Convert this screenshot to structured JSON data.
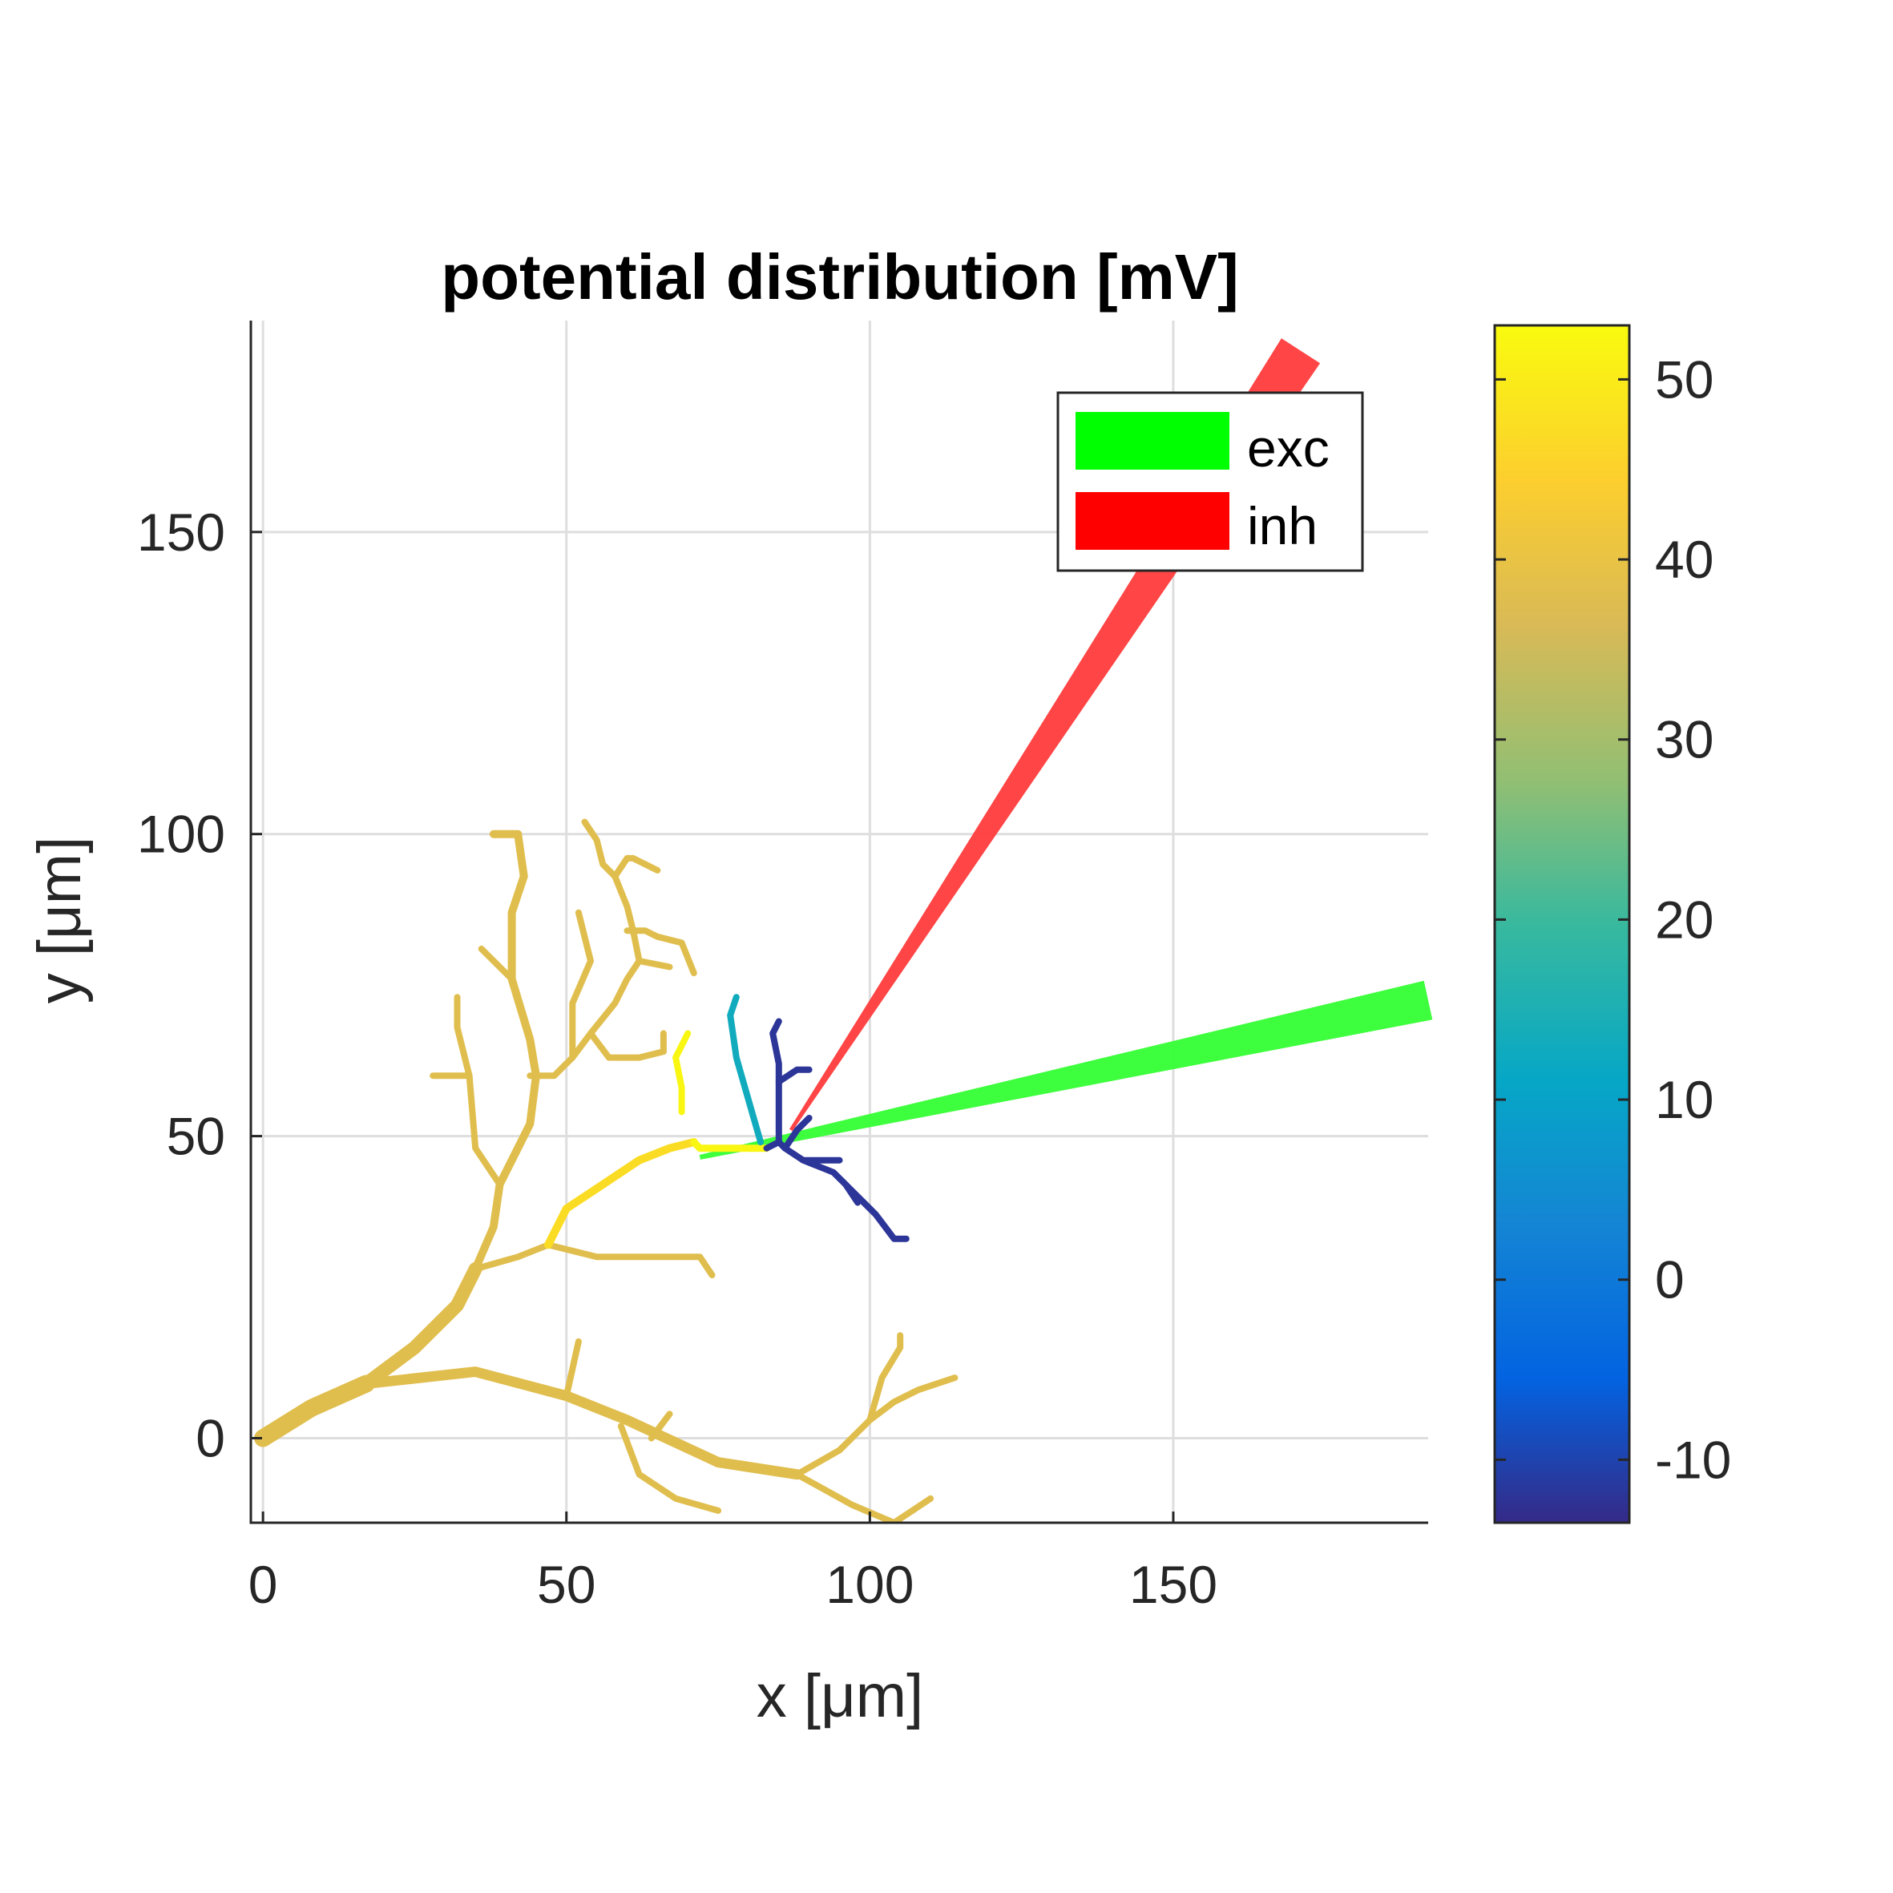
{
  "chart_data": {
    "type": "line",
    "title": "potential distribution [mV]",
    "xlabel": "x [μm]",
    "ylabel": "y [μm]",
    "xlim": [
      -2,
      192
    ],
    "ylim": [
      -14,
      185
    ],
    "xticks": [
      0,
      50,
      100,
      150
    ],
    "yticks": [
      0,
      50,
      100,
      150
    ],
    "xtick_labels": [
      "0",
      "50",
      "100",
      "150"
    ],
    "ytick_labels": [
      "0",
      "50",
      "100",
      "150"
    ],
    "grid": true,
    "legend": {
      "position": "top-right",
      "entries": [
        {
          "label": "exc",
          "color": "#00ff00"
        },
        {
          "label": "inh",
          "color": "#ff0000"
        }
      ]
    },
    "colorbar": {
      "colormap": "parula",
      "range": [
        -13.5,
        53
      ],
      "ticks": [
        -10,
        0,
        10,
        20,
        30,
        40,
        50
      ],
      "tick_labels": [
        "-10",
        "0",
        "10",
        "20",
        "30",
        "40",
        "50"
      ]
    },
    "electrodes": [
      {
        "name": "exc",
        "color": "#33ff33",
        "tip": [
          72,
          46.5
        ],
        "end": [
          192,
          72.5
        ],
        "tip_half_width": 0.4,
        "end_half_width": 3.3
      },
      {
        "name": "inh",
        "color": "#ff3b3b",
        "tip": [
          87,
          51
        ],
        "end": [
          171,
          180
        ],
        "tip_half_width": 0.3,
        "end_half_width": 3.8
      }
    ],
    "neuron_segments": [
      {
        "points": [
          [
            0,
            0
          ],
          [
            8,
            5
          ],
          [
            17,
            9
          ]
        ],
        "width": 22,
        "value": 38
      },
      {
        "points": [
          [
            17,
            9
          ],
          [
            25,
            15
          ],
          [
            32,
            22
          ],
          [
            35,
            28
          ]
        ],
        "width": 17,
        "value": 38
      },
      {
        "points": [
          [
            17,
            9
          ],
          [
            35,
            11
          ],
          [
            50,
            7
          ],
          [
            60,
            3
          ],
          [
            75,
            -4
          ],
          [
            88,
            -6
          ]
        ],
        "width": 13,
        "value": 38
      },
      {
        "points": [
          [
            88,
            -6
          ],
          [
            97,
            -11
          ],
          [
            104,
            -14
          ],
          [
            110,
            -10
          ]
        ],
        "width": 8,
        "value": 38
      },
      {
        "points": [
          [
            88,
            -6
          ],
          [
            95,
            -2
          ],
          [
            100,
            3
          ],
          [
            104,
            6
          ],
          [
            108,
            8
          ],
          [
            114,
            10
          ]
        ],
        "width": 8,
        "value": 38
      },
      {
        "points": [
          [
            100,
            3
          ],
          [
            102,
            10
          ],
          [
            105,
            15
          ],
          [
            105,
            17
          ]
        ],
        "width": 8,
        "value": 38
      },
      {
        "points": [
          [
            59,
            2
          ],
          [
            62,
            -6
          ],
          [
            68,
            -10
          ],
          [
            75,
            -12
          ]
        ],
        "width": 8,
        "value": 38
      },
      {
        "points": [
          [
            50,
            7
          ],
          [
            52,
            16
          ]
        ],
        "width": 8,
        "value": 38
      },
      {
        "points": [
          [
            64,
            0
          ],
          [
            67,
            4
          ]
        ],
        "width": 8,
        "value": 38
      },
      {
        "points": [
          [
            35,
            28
          ],
          [
            38,
            35
          ],
          [
            39,
            42
          ],
          [
            44,
            52
          ],
          [
            45,
            60
          ],
          [
            44,
            66
          ],
          [
            41,
            76
          ],
          [
            41,
            87
          ],
          [
            43,
            93
          ],
          [
            42,
            100
          ],
          [
            38,
            100
          ]
        ],
        "width": 10,
        "value": 38
      },
      {
        "points": [
          [
            41,
            76
          ],
          [
            36,
            81
          ]
        ],
        "width": 8,
        "value": 38
      },
      {
        "points": [
          [
            39,
            42
          ],
          [
            35,
            48
          ],
          [
            34,
            60
          ],
          [
            32,
            68
          ],
          [
            32,
            73
          ]
        ],
        "width": 8,
        "value": 38
      },
      {
        "points": [
          [
            34,
            60
          ],
          [
            28,
            60
          ]
        ],
        "width": 8,
        "value": 38
      },
      {
        "points": [
          [
            44,
            60
          ],
          [
            48,
            60
          ],
          [
            51,
            63
          ],
          [
            54,
            67
          ],
          [
            58,
            72
          ],
          [
            60,
            76
          ],
          [
            62,
            79
          ],
          [
            61,
            84
          ],
          [
            60,
            88
          ],
          [
            58,
            93
          ],
          [
            60,
            96
          ],
          [
            61,
            96
          ],
          [
            65,
            94
          ]
        ],
        "width": 8,
        "value": 38
      },
      {
        "points": [
          [
            51,
            63
          ],
          [
            51,
            72
          ],
          [
            54,
            79
          ],
          [
            52,
            87
          ]
        ],
        "width": 8,
        "value": 38
      },
      {
        "points": [
          [
            58,
            93
          ],
          [
            56,
            95
          ],
          [
            55,
            99
          ],
          [
            53,
            102
          ]
        ],
        "width": 8,
        "value": 38
      },
      {
        "points": [
          [
            54,
            67
          ],
          [
            57,
            63
          ],
          [
            62,
            63
          ],
          [
            66,
            64
          ],
          [
            66,
            67
          ]
        ],
        "width": 8,
        "value": 38
      },
      {
        "points": [
          [
            62,
            79
          ],
          [
            67,
            78
          ]
        ],
        "width": 8,
        "value": 38
      },
      {
        "points": [
          [
            60,
            84
          ],
          [
            63,
            84
          ],
          [
            65,
            83
          ],
          [
            69,
            82
          ],
          [
            71,
            77
          ]
        ],
        "width": 8,
        "value": 38
      },
      {
        "points": [
          [
            35,
            28
          ],
          [
            42,
            30
          ],
          [
            47,
            32
          ],
          [
            55,
            30
          ],
          [
            65,
            30
          ],
          [
            72,
            30
          ],
          [
            74,
            27
          ]
        ],
        "width": 8,
        "value": 38
      },
      {
        "points": [
          [
            47,
            32
          ],
          [
            50,
            38
          ],
          [
            56,
            42
          ],
          [
            62,
            46
          ],
          [
            67,
            48
          ],
          [
            71,
            49
          ]
        ],
        "width": 10,
        "value": 47
      },
      {
        "points": [
          [
            71,
            49
          ],
          [
            72,
            48
          ],
          [
            78,
            48
          ],
          [
            83,
            48
          ]
        ],
        "width": 9,
        "value": 52
      },
      {
        "points": [
          [
            69,
            54
          ],
          [
            69,
            58
          ],
          [
            68,
            63
          ],
          [
            70,
            67
          ]
        ],
        "width": 8,
        "value": 52
      },
      {
        "points": [
          [
            82,
            49
          ],
          [
            80,
            56
          ],
          [
            78,
            63
          ],
          [
            77,
            70
          ],
          [
            78,
            73
          ]
        ],
        "width": 8,
        "value": 13
      },
      {
        "points": [
          [
            83,
            48
          ],
          [
            85,
            49
          ],
          [
            86,
            48
          ],
          [
            88,
            51
          ],
          [
            90,
            53
          ]
        ],
        "width": 8,
        "value": -12
      },
      {
        "points": [
          [
            85,
            49
          ],
          [
            85,
            57
          ],
          [
            85,
            62
          ],
          [
            84,
            67
          ],
          [
            85,
            69
          ]
        ],
        "width": 8,
        "value": -12
      },
      {
        "points": [
          [
            85,
            59
          ],
          [
            88,
            61
          ],
          [
            90,
            61
          ]
        ],
        "width": 8,
        "value": -12
      },
      {
        "points": [
          [
            86,
            48
          ],
          [
            89,
            46
          ],
          [
            94,
            44
          ],
          [
            96,
            42
          ],
          [
            98,
            39
          ]
        ],
        "width": 8,
        "value": -12
      },
      {
        "points": [
          [
            89,
            46
          ],
          [
            95,
            46
          ]
        ],
        "width": 8,
        "value": -12
      },
      {
        "points": [
          [
            96,
            42
          ],
          [
            99,
            39
          ],
          [
            101,
            37
          ],
          [
            104,
            33
          ],
          [
            106,
            33
          ]
        ],
        "width": 8,
        "value": -12
      }
    ]
  }
}
